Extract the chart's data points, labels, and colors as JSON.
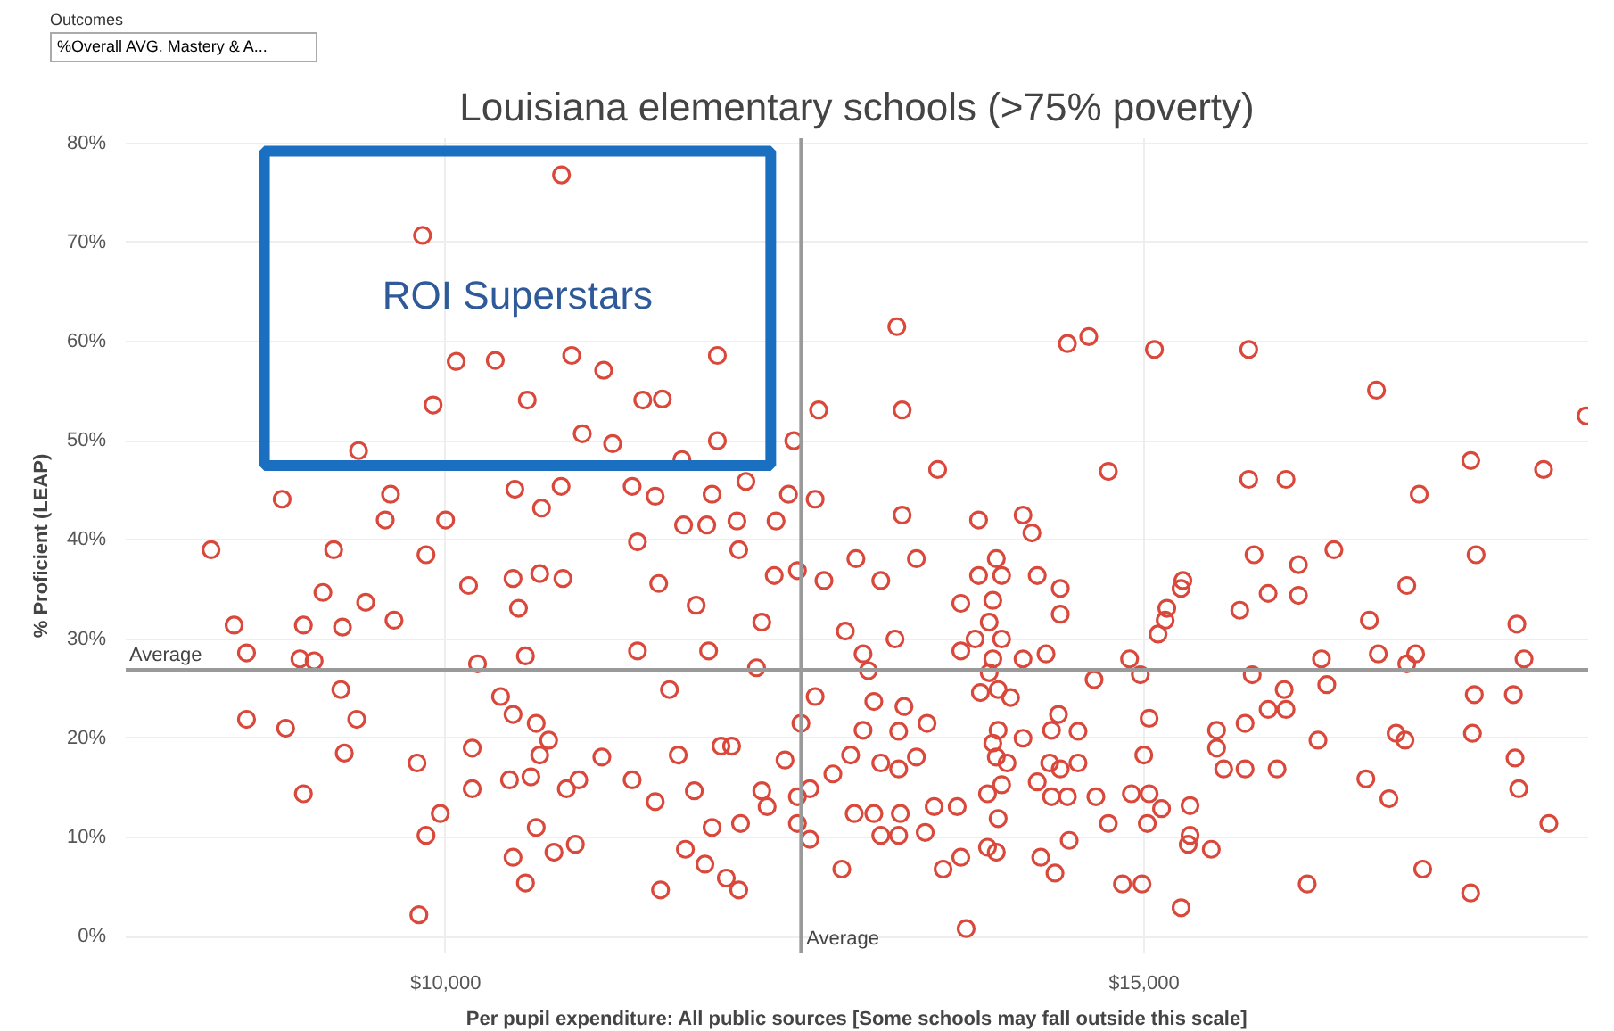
{
  "chart_data": {
    "type": "scatter",
    "title": "Louisiana elementary schools (>75% poverty)",
    "xlabel": "Per pupil expenditure: All public sources [Some schools may fall outside this scale]",
    "ylabel": "% Proficient (LEAP)",
    "annotations": [
      "Outcomes",
      "%Overall AVG. Mastery & A...",
      "ROI Superstars"
    ],
    "xlim": [
      7710,
      18180
    ],
    "ylim": [
      -1.7,
      80.5
    ],
    "xticks": [
      {
        "value": 10000,
        "label": "$10,000"
      },
      {
        "value": 15000,
        "label": "$15,000"
      }
    ],
    "yticks": [
      {
        "value": 0,
        "label": "0%"
      },
      {
        "value": 10,
        "label": "10%"
      },
      {
        "value": 20,
        "label": "20%"
      },
      {
        "value": 30,
        "label": "30%"
      },
      {
        "value": 40,
        "label": "40%"
      },
      {
        "value": 50,
        "label": "50%"
      },
      {
        "value": 60,
        "label": "60%"
      },
      {
        "value": 70,
        "label": "70%"
      },
      {
        "value": 80,
        "label": "80%"
      }
    ],
    "grid": true,
    "marker": "circle",
    "ref_lines": [
      {
        "axis": "y",
        "value": 26.9,
        "label": "Average",
        "color": "#9a9a9a"
      },
      {
        "axis": "x",
        "value": 12545,
        "label": "Average",
        "color": "#9a9a9a"
      }
    ],
    "series": [
      {
        "color": "#d9483b",
        "x": [
          10830,
          9835,
          10076,
          10356,
          10903,
          11132,
          9911,
          10585,
          10979,
          9377,
          11196,
          11946,
          11412,
          11552,
          11946,
          11692,
          12493,
          13231,
          14452,
          14605,
          13269,
          12671,
          13523,
          14745,
          13269,
          15075,
          15750,
          16665,
          18166,
          15750,
          16017,
          16971,
          17340,
          17861,
          8830,
          9606,
          9568,
          10000,
          10496,
          10827,
          10687,
          8321,
          9199,
          9860,
          9122,
          9428,
          9631,
          8982,
          8486,
          8957,
          9059,
          9262,
          8575,
          9250,
          8575,
          8855,
          9364,
          9275,
          8982,
          9796,
          9962,
          9860,
          9809,
          10165,
          10483,
          10674,
          10840,
          10522,
          10229,
          10572,
          10394,
          10483,
          10649,
          10738,
          10674,
          10458,
          10611,
          10191,
          10865,
          10954,
          11119,
          10483,
          10776,
          10929,
          10649,
          10572,
          10191,
          13816,
          14134,
          12646,
          12455,
          12366,
          12086,
          11870,
          11704,
          12150,
          11908,
          11501,
          11336,
          14198,
          11374,
          12099,
          11526,
          11794,
          12353,
          12519,
          12264,
          11883,
          12226,
          11603,
          11374,
          11666,
          11972,
          12048,
          12430,
          11501,
          11781,
          12264,
          12302,
          11717,
          11857,
          12010,
          11539,
          12099,
          11908,
          12112,
          11336,
          13371,
          12938,
          13116,
          12709,
          12862,
          12989,
          13218,
          13027,
          12646,
          12544,
          13066,
          13282,
          12989,
          13244,
          13447,
          12900,
          13116,
          13371,
          13244,
          12773,
          12519,
          12608,
          12926,
          13066,
          13256,
          13498,
          13663,
          12608,
          13116,
          13244,
          13434,
          12519,
          12837,
          13562,
          13689,
          13727,
          13816,
          13943,
          13981,
          14236,
          13918,
          14401,
          14401,
          13689,
          13892,
          13791,
          13689,
          13981,
          13918,
          14134,
          14299,
          13892,
          13956,
          13829,
          14045,
          14643,
          14388,
          14528,
          14338,
          13956,
          14134,
          13918,
          13943,
          14020,
          14325,
          14401,
          14528,
          14236,
          13981,
          13880,
          14338,
          14452,
          14656,
          13956,
          14465,
          14745,
          13880,
          13943,
          14261,
          14363,
          15788,
          16106,
          16360,
          17378,
          15279,
          15266,
          15889,
          16106,
          16882,
          15164,
          15152,
          15686,
          16614,
          17670,
          15101,
          16678,
          16945,
          16882,
          16271,
          17721,
          14897,
          14974,
          15775,
          16004,
          16309,
          17365,
          17645,
          15889,
          16017,
          15037,
          15520,
          15724,
          16246,
          16805,
          16869,
          17352,
          15520,
          14999,
          15571,
          15724,
          15953,
          17657,
          16589,
          14910,
          15037,
          15126,
          15330,
          16754,
          17683,
          15024,
          17899,
          15330,
          15317,
          15482,
          14846,
          14986,
          16169,
          16996,
          17339,
          15266
        ],
        "values": [
          76.8,
          70.7,
          58.0,
          58.1,
          58.6,
          57.1,
          53.6,
          54.1,
          50.7,
          49.0,
          49.7,
          58.6,
          54.1,
          54.2,
          50.0,
          48.1,
          50.0,
          61.5,
          59.8,
          60.5,
          53.1,
          53.1,
          47.1,
          46.9,
          42.5,
          59.2,
          59.2,
          55.1,
          52.5,
          46.1,
          46.1,
          44.6,
          48.0,
          47.1,
          44.1,
          44.6,
          42.0,
          42.0,
          45.1,
          45.4,
          43.2,
          39.0,
          39.0,
          38.5,
          34.7,
          33.7,
          31.9,
          31.4,
          31.4,
          28.0,
          27.8,
          31.2,
          28.6,
          24.9,
          21.9,
          21.0,
          21.9,
          18.5,
          14.4,
          17.5,
          12.4,
          10.2,
          2.2,
          35.4,
          36.1,
          36.6,
          36.1,
          33.1,
          27.5,
          28.3,
          24.2,
          22.4,
          21.5,
          19.8,
          18.3,
          15.8,
          16.1,
          14.9,
          14.9,
          15.8,
          18.1,
          8.0,
          8.5,
          9.3,
          11.0,
          5.4,
          19.0,
          42.0,
          42.5,
          44.1,
          44.6,
          41.9,
          41.9,
          41.5,
          41.5,
          45.9,
          44.6,
          44.4,
          45.4,
          40.7,
          39.8,
          39.0,
          35.6,
          33.4,
          36.4,
          36.9,
          31.7,
          28.8,
          27.1,
          24.9,
          28.8,
          18.3,
          19.2,
          19.2,
          17.8,
          13.6,
          14.7,
          14.7,
          13.1,
          8.8,
          7.3,
          5.9,
          4.7,
          4.7,
          11.0,
          11.4,
          15.8,
          38.1,
          38.1,
          35.9,
          35.9,
          30.8,
          28.5,
          30.0,
          26.8,
          24.2,
          21.5,
          23.7,
          23.2,
          20.8,
          20.7,
          21.5,
          18.3,
          17.5,
          18.1,
          16.9,
          16.4,
          14.1,
          14.9,
          12.4,
          12.4,
          12.4,
          13.1,
          13.1,
          9.8,
          10.2,
          10.2,
          10.5,
          11.4,
          6.8,
          6.8,
          8.0,
          0.8,
          36.4,
          38.1,
          36.4,
          36.4,
          33.9,
          35.1,
          32.5,
          33.6,
          31.7,
          30.0,
          28.8,
          30.0,
          28.0,
          28.0,
          28.5,
          26.6,
          24.9,
          24.6,
          24.1,
          25.9,
          22.4,
          20.7,
          20.8,
          20.8,
          20.0,
          19.5,
          18.1,
          17.5,
          17.5,
          16.9,
          17.5,
          15.6,
          15.3,
          14.4,
          14.1,
          14.1,
          14.1,
          11.9,
          9.7,
          11.4,
          9.0,
          8.5,
          8.0,
          6.4,
          38.5,
          37.5,
          39.0,
          38.5,
          35.9,
          35.1,
          34.6,
          34.4,
          35.4,
          33.1,
          31.9,
          32.9,
          31.9,
          31.5,
          30.5,
          28.5,
          28.5,
          27.5,
          28.0,
          28.0,
          28.0,
          26.4,
          26.4,
          24.9,
          25.4,
          24.4,
          24.4,
          22.9,
          22.9,
          22.0,
          20.8,
          21.5,
          19.8,
          20.5,
          19.8,
          20.5,
          19.0,
          18.3,
          16.9,
          16.9,
          16.9,
          18.0,
          15.9,
          14.4,
          14.4,
          12.9,
          13.2,
          13.9,
          14.9,
          11.4,
          11.4,
          10.2,
          9.3,
          8.8,
          5.3,
          5.3,
          5.3,
          6.8,
          4.4,
          2.9
        ]
      }
    ]
  }
}
